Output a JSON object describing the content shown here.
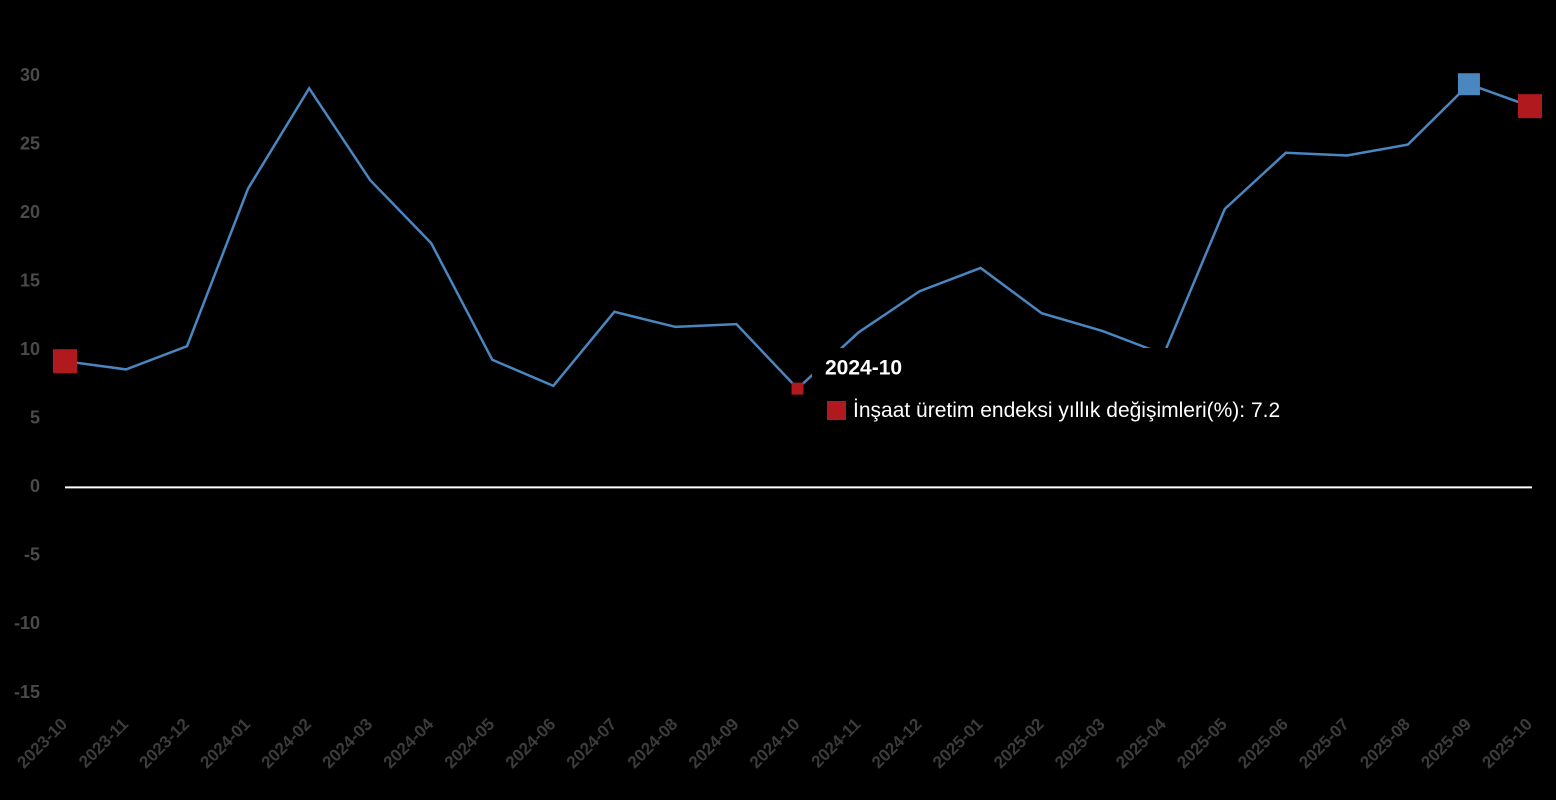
{
  "chart_data": {
    "type": "line",
    "categories": [
      "2023-10",
      "2023-11",
      "2023-12",
      "2024-01",
      "2024-02",
      "2024-03",
      "2024-04",
      "2024-05",
      "2024-06",
      "2024-07",
      "2024-08",
      "2024-09",
      "2024-10",
      "2024-11",
      "2024-12",
      "2025-01",
      "2025-02",
      "2025-03",
      "2025-04",
      "2025-05",
      "2025-06",
      "2025-07",
      "2025-08",
      "2025-09",
      "2025-10"
    ],
    "series": [
      {
        "name": "İnşaat üretim endeksi yıllık değişimleri(%)",
        "color": "#4a86c0",
        "values": [
          9.2,
          8.6,
          10.3,
          21.8,
          29.1,
          22.4,
          17.8,
          9.3,
          7.4,
          12.8,
          11.7,
          11.9,
          7.2,
          11.3,
          14.3,
          16.0,
          12.7,
          11.4,
          9.7,
          20.3,
          24.4,
          24.2,
          25.0,
          29.4,
          27.8
        ]
      }
    ],
    "highlight_color": "#b0191e",
    "tooltip_index": 12,
    "ylim": [
      -15,
      30
    ],
    "yticks": [
      -15,
      -10,
      -5,
      0,
      5,
      10,
      15,
      20,
      25,
      30
    ]
  }
}
